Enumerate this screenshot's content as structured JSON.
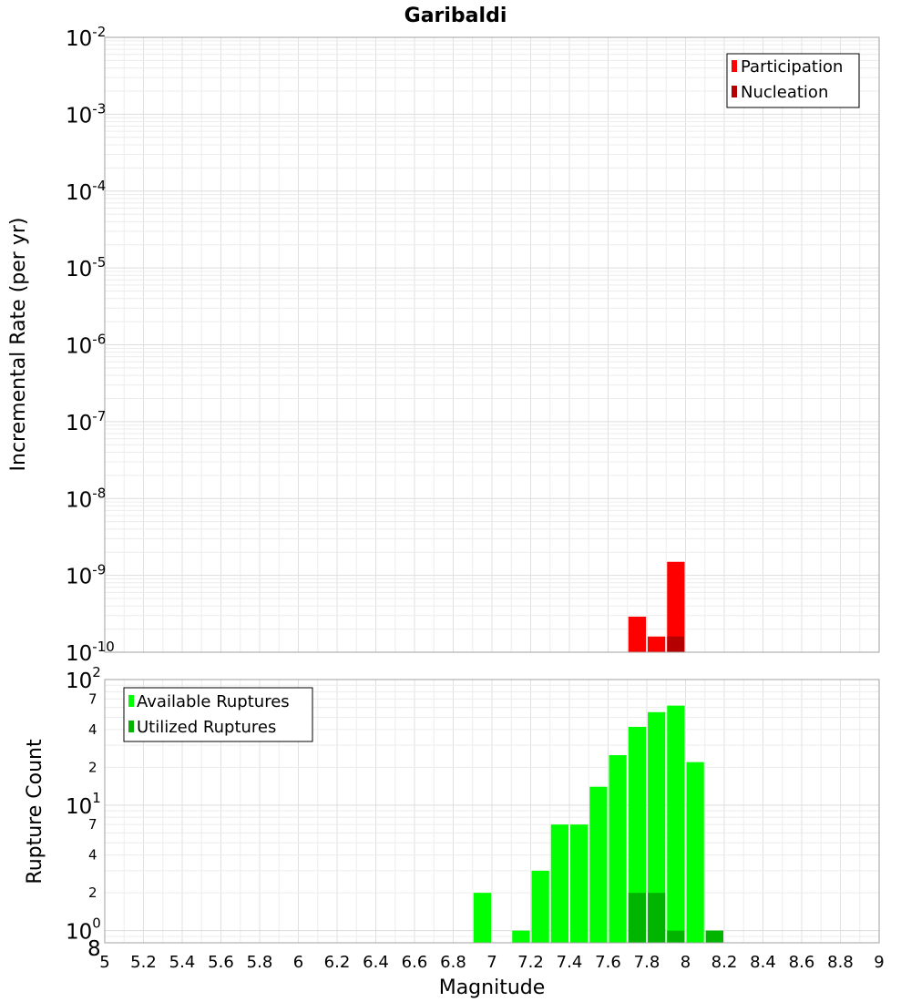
{
  "title": "Garibaldi",
  "chart_data": [
    {
      "type": "bar",
      "ylabel": "Incremental Rate (per yr)",
      "yscale": "log",
      "ylim": [
        1e-10,
        0.01
      ],
      "xlim": [
        5,
        9
      ],
      "bin_width": 0.1,
      "yticks": [
        {
          "base": "10",
          "exp": "-2"
        },
        {
          "base": "10",
          "exp": "-3"
        },
        {
          "base": "10",
          "exp": "-4"
        },
        {
          "base": "10",
          "exp": "-5"
        },
        {
          "base": "10",
          "exp": "-6"
        },
        {
          "base": "10",
          "exp": "-7"
        },
        {
          "base": "10",
          "exp": "-8"
        },
        {
          "base": "10",
          "exp": "-9"
        },
        {
          "base": "10",
          "exp": "-10"
        }
      ],
      "legend": {
        "position": "top-right",
        "entries": [
          "Participation",
          "Nucleation"
        ]
      },
      "series": [
        {
          "name": "Participation",
          "color": "#ff0000",
          "x": [
            7.75,
            7.85,
            7.95
          ],
          "values": [
            2.9e-10,
            1.6e-10,
            1.5e-09
          ]
        },
        {
          "name": "Nucleation",
          "color": "#b40000",
          "x": [
            7.95
          ],
          "values": [
            1.6e-10
          ]
        }
      ]
    },
    {
      "type": "bar",
      "ylabel": "Rupture Count",
      "xlabel": "Magnitude",
      "yscale": "log",
      "ylim": [
        0.8,
        100
      ],
      "xlim": [
        5,
        9
      ],
      "bin_width": 0.1,
      "xticks": [
        "5",
        "5.2",
        "5.4",
        "5.6",
        "5.8",
        "6",
        "6.2",
        "6.4",
        "6.6",
        "6.8",
        "7",
        "7.2",
        "7.4",
        "7.6",
        "7.8",
        "8",
        "8.2",
        "8.4",
        "8.6",
        "8.8",
        "9"
      ],
      "ytick_labels": [
        {
          "value": 0.8,
          "label": "8",
          "exp": ""
        },
        {
          "value": 1,
          "label": "10",
          "exp": "0"
        },
        {
          "value": 2,
          "label": "2",
          "exp": ""
        },
        {
          "value": 4,
          "label": "4",
          "exp": ""
        },
        {
          "value": 7,
          "label": "7",
          "exp": ""
        },
        {
          "value": 10,
          "label": "10",
          "exp": "1"
        },
        {
          "value": 20,
          "label": "2",
          "exp": ""
        },
        {
          "value": 40,
          "label": "4",
          "exp": ""
        },
        {
          "value": 70,
          "label": "7",
          "exp": ""
        },
        {
          "value": 100,
          "label": "10",
          "exp": "2"
        }
      ],
      "legend": {
        "position": "top-left",
        "entries": [
          "Available Ruptures",
          "Utilized Ruptures"
        ]
      },
      "series": [
        {
          "name": "Available Ruptures",
          "color": "#00ff00",
          "x": [
            6.95,
            7.15,
            7.25,
            7.35,
            7.45,
            7.55,
            7.65,
            7.75,
            7.85,
            7.95,
            8.05,
            8.15
          ],
          "values": [
            2,
            1,
            3,
            7,
            7,
            14,
            25,
            42,
            55,
            62,
            22,
            1
          ]
        },
        {
          "name": "Utilized Ruptures",
          "color": "#00b400",
          "x": [
            7.75,
            7.85,
            7.95,
            8.15
          ],
          "values": [
            2,
            2,
            1,
            1
          ]
        }
      ]
    }
  ]
}
